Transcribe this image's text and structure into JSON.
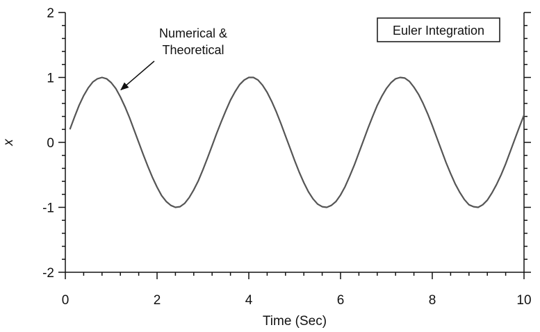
{
  "chart_data": {
    "type": "line",
    "xlabel": "Time (Sec)",
    "ylabel": "x",
    "xlim": [
      0,
      10
    ],
    "ylim": [
      -2,
      2
    ],
    "x_ticks": [
      0,
      2,
      4,
      6,
      8,
      10
    ],
    "y_ticks": [
      2,
      1,
      0,
      -1,
      -2
    ],
    "grid": false,
    "series": [
      {
        "x": [
          0.1,
          0.2,
          0.3,
          0.4,
          0.5,
          0.6,
          0.7,
          0.8,
          0.9,
          1.0,
          1.1,
          1.2,
          1.3,
          1.4,
          1.5,
          1.6,
          1.7,
          1.8,
          1.9,
          2.0,
          2.1,
          2.2,
          2.3,
          2.4,
          2.5,
          2.6,
          2.7,
          2.8,
          2.9,
          3.0,
          3.1,
          3.2,
          3.3,
          3.4,
          3.5,
          3.6,
          3.7,
          3.8,
          3.9,
          4.0,
          4.1,
          4.2,
          4.3,
          4.4,
          4.5,
          4.6,
          4.7,
          4.8,
          4.9,
          5.0,
          5.1,
          5.2,
          5.3,
          5.4,
          5.5,
          5.6,
          5.7,
          5.8,
          5.9,
          6.0,
          6.1,
          6.2,
          6.3,
          6.4,
          6.5,
          6.6,
          6.7,
          6.8,
          6.9,
          7.0,
          7.1,
          7.2,
          7.3,
          7.4,
          7.5,
          7.6,
          7.7,
          7.8,
          7.9,
          8.0,
          8.1,
          8.2,
          8.3,
          8.4,
          8.5,
          8.6,
          8.7,
          8.8,
          8.9,
          9.0,
          9.1,
          9.2,
          9.3,
          9.4,
          9.5,
          9.6,
          9.7,
          9.8,
          9.9,
          10.0
        ],
        "values": [
          0.2,
          0.39,
          0.57,
          0.72,
          0.84,
          0.93,
          0.98,
          1.0,
          0.98,
          0.92,
          0.83,
          0.7,
          0.55,
          0.38,
          0.19,
          0.0,
          -0.19,
          -0.37,
          -0.54,
          -0.69,
          -0.82,
          -0.91,
          -0.97,
          -1.0,
          -0.99,
          -0.94,
          -0.85,
          -0.73,
          -0.59,
          -0.42,
          -0.24,
          -0.05,
          0.14,
          0.32,
          0.49,
          0.65,
          0.78,
          0.89,
          0.96,
          1.0,
          1.0,
          0.96,
          0.88,
          0.77,
          0.63,
          0.47,
          0.29,
          0.1,
          -0.09,
          -0.28,
          -0.46,
          -0.62,
          -0.76,
          -0.87,
          -0.95,
          -0.99,
          -1.0,
          -0.97,
          -0.91,
          -0.81,
          -0.68,
          -0.52,
          -0.35,
          -0.16,
          0.03,
          0.22,
          0.4,
          0.57,
          0.71,
          0.83,
          0.92,
          0.98,
          1.0,
          0.99,
          0.94,
          0.85,
          0.74,
          0.6,
          0.44,
          0.26,
          0.07,
          -0.12,
          -0.31,
          -0.48,
          -0.64,
          -0.77,
          -0.88,
          -0.96,
          -0.99,
          -1.0,
          -0.96,
          -0.89,
          -0.78,
          -0.65,
          -0.5,
          -0.33,
          -0.14,
          0.05,
          0.24,
          0.42
        ],
        "color": "#555555"
      }
    ],
    "annotations": [
      {
        "text_lines": [
          "Numerical &",
          "Theoretical"
        ],
        "arrow_to": [
          1.15,
          0.83
        ]
      }
    ],
    "inset_label": "Euler Integration"
  }
}
